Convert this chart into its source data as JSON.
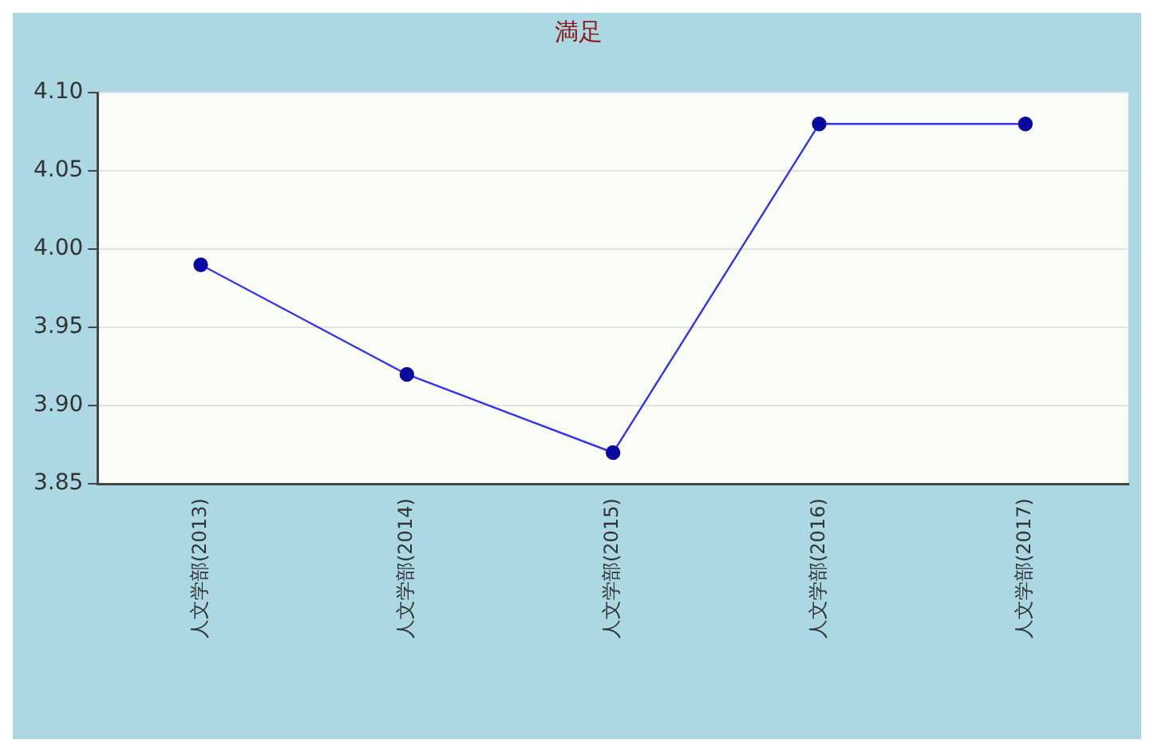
{
  "chart_data": {
    "type": "line",
    "title": "満足",
    "categories": [
      "人文学部(2013)",
      "人文学部(2014)",
      "人文学部(2015)",
      "人文学部(2016)",
      "人文学部(2017)"
    ],
    "series": [
      {
        "color": "#3333ee",
        "values": [
          3.99,
          3.92,
          3.87,
          4.08,
          4.08
        ]
      }
    ],
    "ylim": [
      3.85,
      4.1
    ],
    "yticks": [
      {
        "value": 3.85,
        "label": "3.85"
      },
      {
        "value": 3.9,
        "label": "3.90"
      },
      {
        "value": 3.95,
        "label": "3.95"
      },
      {
        "value": 4.0,
        "label": "4.00"
      },
      {
        "value": 4.05,
        "label": "4.05"
      },
      {
        "value": 4.1,
        "label": "4.10"
      }
    ],
    "grid": "y",
    "legend": false,
    "marker": "circle",
    "line_style": "solid"
  }
}
